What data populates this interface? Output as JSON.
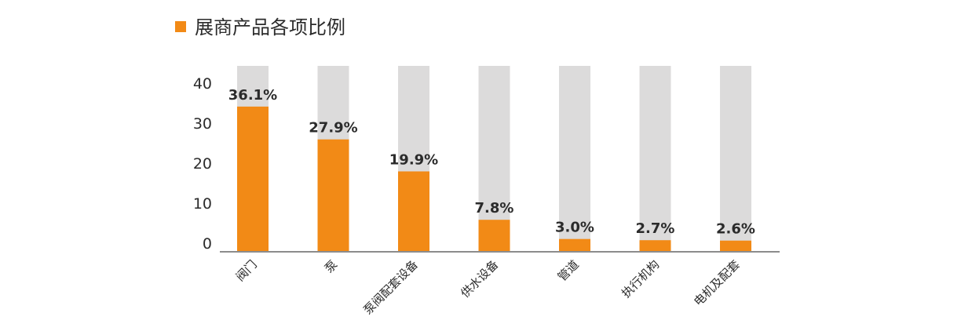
{
  "chart_data": {
    "type": "bar",
    "title": "展商产品各项比例",
    "categories": [
      "阀门",
      "泵",
      "泵阀配套设备",
      "供水设备",
      "管道",
      "执行机构",
      "电机及配套"
    ],
    "values": [
      36.1,
      27.9,
      19.9,
      7.8,
      3.0,
      2.7,
      2.6
    ],
    "value_labels": [
      "36.1%",
      "27.9%",
      "19.9%",
      "7.8%",
      "3.0%",
      "2.7%",
      "2.6%"
    ],
    "y_ticks": [
      0,
      10,
      20,
      30,
      40
    ],
    "ylim": [
      0,
      40
    ],
    "grid": false,
    "legend": "none"
  },
  "colors": {
    "bar": "#f28a16",
    "bar_background": "#dcdbdb",
    "title_marker": "#f28a16",
    "axis": "#666666",
    "text": "#2b2b2b"
  }
}
